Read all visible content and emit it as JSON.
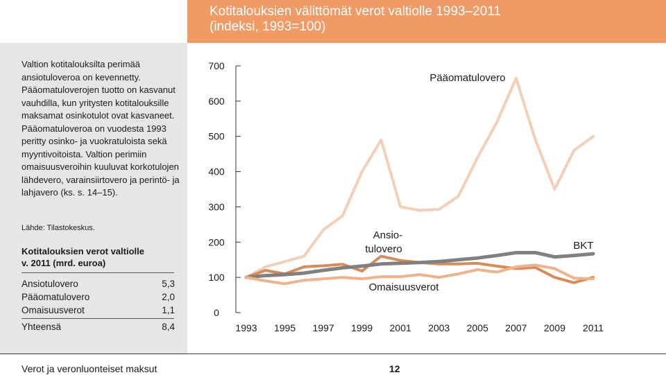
{
  "header": {
    "title": "Kotitalouksien välittömät verot valtiolle 1993–2011",
    "subtitle": "(indeksi, 1993=100)"
  },
  "sidebar": {
    "intro_text": "Valtion kotitalouksilta perimää ansiotuloveroa on kevennetty. Pääomatuloverojen tuotto on kasvanut vauhdilla, kun yritysten kotitalouksille maksamat osinkotulot ovat kasvaneet. Pääomatuloveroa on vuodesta 1993 peritty osinko- ja vuokratuloista sekä myyntivoitoista. Valtion perimiin omaisuusveroihin kuuluvat korkotulojen lähdevero, varainsiirtovero ja perintö- ja lahjavero (ks. s. 14–15).",
    "source": "Lähde: Tilastokeskus.",
    "tax_title_1": "Kotitalouksien verot valtiolle",
    "tax_title_2": "v. 2011 (mrd. euroa)",
    "rows": [
      {
        "label": "Ansiotulovero",
        "value": "5,3"
      },
      {
        "label": "Pääomatulovero",
        "value": "2,0"
      },
      {
        "label": "Omaisuusverot",
        "value": "1,1"
      }
    ],
    "total": {
      "label": "Yhteensä",
      "value": "8,4"
    }
  },
  "footer": {
    "left": "Verot ja veronluonteiset maksut",
    "page": "12"
  },
  "chart_data": {
    "type": "line",
    "title": "Kotitalouksien välittömät verot valtiolle 1993–2011",
    "subtitle": "(indeksi, 1993=100)",
    "xlabel": "",
    "ylabel": "",
    "x": [
      1993,
      1994,
      1995,
      1996,
      1997,
      1998,
      1999,
      2000,
      2001,
      2002,
      2003,
      2004,
      2005,
      2006,
      2007,
      2008,
      2009,
      2010,
      2011
    ],
    "x_ticks": [
      "1993",
      "1995",
      "1997",
      "1999",
      "2001",
      "2003",
      "2005",
      "2007",
      "2009",
      "2011"
    ],
    "y_ticks": [
      "0",
      "100",
      "200",
      "300",
      "400",
      "500",
      "600",
      "700"
    ],
    "ylim": [
      0,
      700
    ],
    "grid": false,
    "series": [
      {
        "name": "Pääomatulovero",
        "color": "#f4cfb8",
        "values": [
          100,
          130,
          145,
          160,
          235,
          275,
          400,
          490,
          300,
          290,
          293,
          330,
          440,
          540,
          665,
          490,
          350,
          460,
          500
        ]
      },
      {
        "name": "Ansiotulovero",
        "color": "#d98a57",
        "values": [
          100,
          120,
          110,
          130,
          133,
          137,
          118,
          160,
          148,
          142,
          138,
          138,
          140,
          132,
          125,
          128,
          100,
          85,
          100
        ]
      },
      {
        "name": "BKT",
        "color": "#808080",
        "values": [
          100,
          105,
          108,
          112,
          120,
          127,
          132,
          138,
          140,
          142,
          145,
          150,
          155,
          162,
          170,
          170,
          158,
          162,
          167
        ]
      },
      {
        "name": "Omaisuusverot",
        "color": "#f0b28a",
        "values": [
          100,
          90,
          82,
          92,
          96,
          100,
          96,
          102,
          102,
          108,
          100,
          110,
          122,
          115,
          130,
          135,
          125,
          98,
          96
        ]
      }
    ],
    "annotations": [
      {
        "text": "Pääomatulovero"
      },
      {
        "text_lines": [
          "Ansio-",
          "tulovero"
        ]
      },
      {
        "text": "Omaisuusverot"
      },
      {
        "text": "BKT"
      }
    ]
  }
}
